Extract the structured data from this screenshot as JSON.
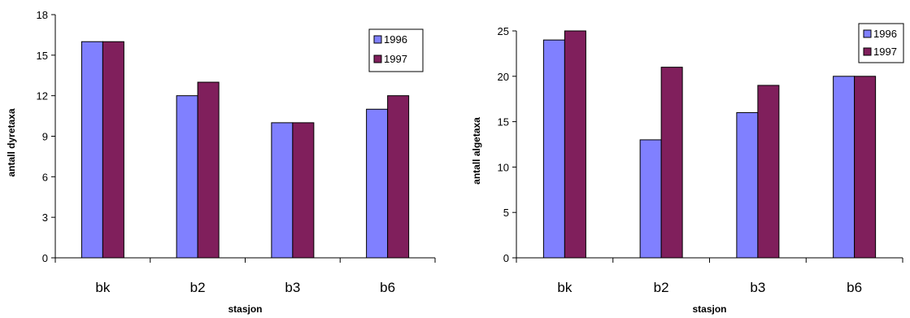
{
  "colors": {
    "s1996": "#8080ff",
    "s1997": "#801f5c"
  },
  "chart_data": [
    {
      "type": "bar",
      "categories": [
        "bk",
        "b2",
        "b3",
        "b6"
      ],
      "series": [
        {
          "name": "1996",
          "values": [
            16,
            12,
            10,
            11
          ]
        },
        {
          "name": "1997",
          "values": [
            16,
            13,
            10,
            12
          ]
        }
      ],
      "xlabel": "stasjon",
      "ylabel": "antall dyretaxa",
      "ylim": [
        0,
        18
      ],
      "yticks": [
        0,
        3,
        6,
        9,
        12,
        15,
        18
      ],
      "legend": "top-right",
      "grid": false
    },
    {
      "type": "bar",
      "categories": [
        "bk",
        "b2",
        "b3",
        "b6"
      ],
      "series": [
        {
          "name": "1996",
          "values": [
            24,
            13,
            16,
            20
          ]
        },
        {
          "name": "1997",
          "values": [
            25,
            21,
            19,
            20
          ]
        }
      ],
      "xlabel": "stasjon",
      "ylabel": "antall algetaxa",
      "ylim": [
        0,
        25
      ],
      "yticks": [
        0,
        5,
        10,
        15,
        20,
        25
      ],
      "legend": "top-right",
      "grid": false
    }
  ]
}
